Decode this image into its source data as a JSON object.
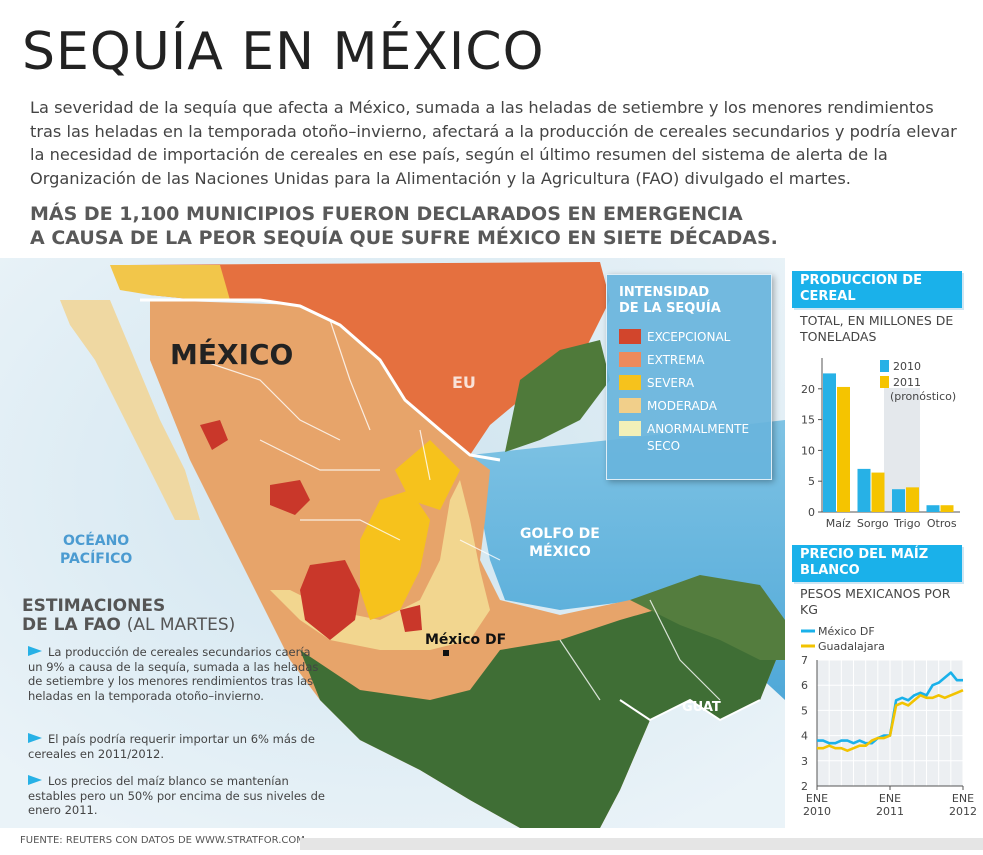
{
  "title": "SEQUÍA EN MÉXICO",
  "intro": "La severidad de la sequía que afecta a México, sumada a las heladas de setiembre y los menores rendimientos tras las heladas en la temporada otoño–invierno, afectará a la producción de cereales secundarios y podría elevar la necesidad de importación de cereales en ese país, según el último resumen del sistema de alerta de la Organización de las Naciones Unidas para la Alimentación y la Agricultura (FAO) divulgado el martes.",
  "headline": [
    "MÁS DE 1,100 MUNICIPIOS FUERON DECLARADOS EN EMERGENCIA",
    "A CAUSA DE LA PEOR SEQUÍA QUE SUFRE MÉXICO EN SIETE DÉCADAS."
  ],
  "map": {
    "country_label": "MÉXICO",
    "eu_label": "EU",
    "ocean_pacific": [
      "OCÉANO",
      "PACÍFICO"
    ],
    "gulf": [
      "GOLFO DE",
      "MÉXICO"
    ],
    "guat_label": "GUAT",
    "df_label": "México DF"
  },
  "legend": {
    "title": [
      "INTENSIDAD",
      "DE LA SEQUÍA"
    ],
    "items": [
      {
        "label": "EXCEPCIONAL",
        "color": "#d2452c"
      },
      {
        "label": "EXTREMA",
        "color": "#ee8a5c"
      },
      {
        "label": "SEVERA",
        "color": "#f6c21c"
      },
      {
        "label": "MODERADA",
        "color": "#f1cf8a"
      },
      {
        "label": "ANORMALMENTE",
        "label2": "SECO",
        "color": "#f2f0b8"
      }
    ]
  },
  "estimaciones": {
    "title1": "ESTIMACIONES",
    "title2": "DE LA FAO",
    "title_sub": "(AL MARTES)",
    "bullets": [
      "La producción de cereales secundarios caería un 9% a causa de la sequía, sumada a las heladas de setiembre y los menores rendimientos tras las heladas en la temporada otoño–invierno.",
      "El país podría requerir importar un 6% más de cereales en 2011/2012.",
      "Los precios del maíz blanco se mantenían estables pero un 50% por encima de sus niveles de enero 2011."
    ]
  },
  "source": "FUENTE: REUTERS CON DATOS DE WWW.STRATFOR.COM.",
  "colors": {
    "accent": "#1ab1ea",
    "series_2010": "#27b1e6",
    "series_2011": "#f5c400",
    "guadalajara": "#f2c300"
  },
  "chart_data": [
    {
      "type": "bar",
      "title": "PRODUCCION DE CEREAL",
      "subtitle": "TOTAL, EN MILLONES DE TONELADAS",
      "categories": [
        "Maíz",
        "Sorgo",
        "Trigo",
        "Otros"
      ],
      "series": [
        {
          "name": "2010",
          "values": [
            22.5,
            7.0,
            3.7,
            1.1
          ]
        },
        {
          "name": "2011 (pronóstico)",
          "values": [
            20.3,
            6.4,
            4.0,
            1.1
          ]
        }
      ],
      "ylim": [
        0,
        25
      ],
      "yticks": [
        0,
        5,
        10,
        15,
        20
      ],
      "legend_labels": [
        "2010",
        "2011",
        "(pronóstico)"
      ]
    },
    {
      "type": "line",
      "title": "PRECIO DEL MAÍZ BLANCO",
      "subtitle": "PESOS MEXICANOS POR KG",
      "xlim": [
        0,
        24
      ],
      "ylim": [
        2,
        7
      ],
      "yticks": [
        2,
        3,
        4,
        5,
        6,
        7
      ],
      "xticks": [
        {
          "x": 0,
          "label": [
            "ENE",
            "2010"
          ]
        },
        {
          "x": 12,
          "label": [
            "ENE",
            "2011"
          ]
        },
        {
          "x": 24,
          "label": [
            "ENE",
            "2012"
          ]
        }
      ],
      "series": [
        {
          "name": "México DF",
          "x": [
            0,
            1,
            2,
            3,
            4,
            5,
            6,
            7,
            8,
            9,
            10,
            11,
            12,
            13,
            14,
            15,
            16,
            17,
            18,
            19,
            20,
            21,
            22,
            23,
            24
          ],
          "values": [
            3.8,
            3.8,
            3.7,
            3.7,
            3.8,
            3.8,
            3.7,
            3.8,
            3.7,
            3.7,
            3.9,
            4.0,
            4.0,
            5.4,
            5.5,
            5.4,
            5.6,
            5.7,
            5.6,
            6.0,
            6.1,
            6.3,
            6.5,
            6.2,
            6.2
          ]
        },
        {
          "name": "Guadalajara",
          "x": [
            0,
            1,
            2,
            3,
            4,
            5,
            6,
            7,
            8,
            9,
            10,
            11,
            12,
            13,
            14,
            15,
            16,
            17,
            18,
            19,
            20,
            21,
            22,
            23,
            24
          ],
          "values": [
            3.5,
            3.5,
            3.6,
            3.5,
            3.5,
            3.4,
            3.5,
            3.6,
            3.6,
            3.8,
            3.9,
            3.9,
            4.0,
            5.2,
            5.3,
            5.2,
            5.4,
            5.6,
            5.5,
            5.5,
            5.6,
            5.5,
            5.6,
            5.7,
            5.8
          ]
        }
      ]
    }
  ]
}
